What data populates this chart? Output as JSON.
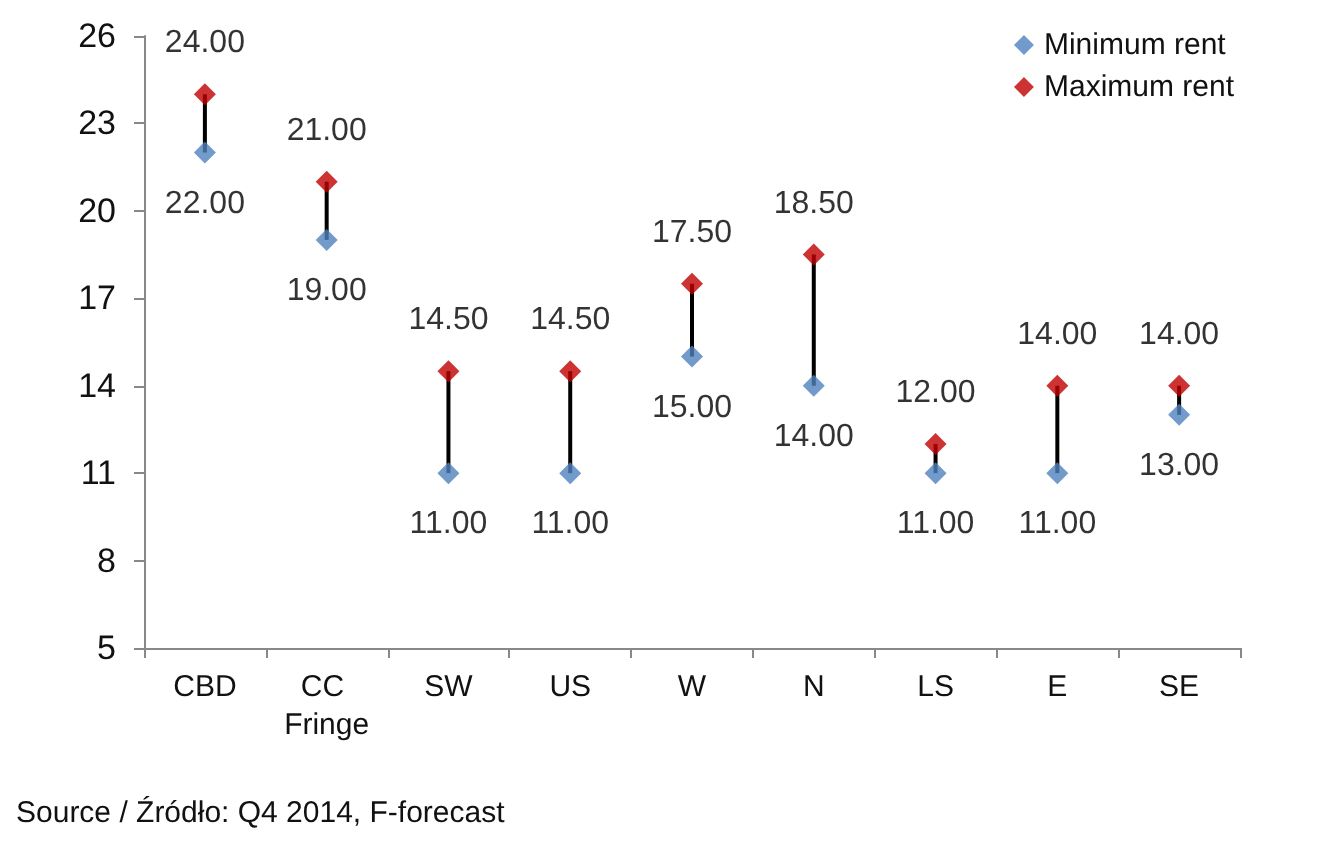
{
  "chart_data": {
    "type": "scatter",
    "categories": [
      "CBD",
      "CC Fringe",
      "SW",
      "US",
      "W",
      "N",
      "LS",
      "E",
      "SE"
    ],
    "series": [
      {
        "name": "Minimum rent",
        "color": "#4f81bd",
        "values": [
          22,
          19,
          11,
          11,
          15,
          14,
          11,
          11,
          13
        ],
        "value_labels": [
          "22.00",
          "19.00",
          "11.00",
          "11.00",
          "15.00",
          "14.00",
          "11.00",
          "11.00",
          "13.00"
        ]
      },
      {
        "name": "Maximum rent",
        "color": "#c00000",
        "values": [
          24,
          21,
          14.5,
          14.5,
          17.5,
          18.5,
          12,
          14,
          14
        ],
        "value_labels": [
          "24.00",
          "21.00",
          "14.50",
          "14.50",
          "17.50",
          "18.50",
          "12.00",
          "14.00",
          "14.00"
        ]
      }
    ],
    "ylim": [
      5,
      26
    ],
    "yticks": [
      5,
      8,
      11,
      14,
      17,
      20,
      23,
      26
    ],
    "marker": "diamond",
    "grid": false,
    "legend": "top right",
    "annotations": [
      "Source / Źródło: Q4 2014, F-forecast"
    ]
  }
}
